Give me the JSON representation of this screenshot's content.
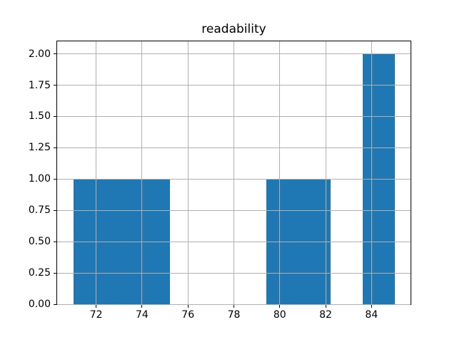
{
  "chart_data": {
    "type": "histogram",
    "title": "readability",
    "xlabel": "",
    "ylabel": "",
    "bin_edges": [
      71.0,
      72.4,
      73.8,
      75.2,
      76.6,
      78.0,
      79.4,
      80.8,
      82.2,
      83.6,
      85.0
    ],
    "counts": [
      1,
      1,
      1,
      0,
      0,
      0,
      1,
      1,
      0,
      2
    ],
    "xlim": [
      70.3,
      85.7
    ],
    "ylim": [
      0,
      2.1
    ],
    "xticks": [
      72,
      74,
      76,
      78,
      80,
      82,
      84
    ],
    "xtick_labels": [
      "72",
      "74",
      "76",
      "78",
      "80",
      "82",
      "84"
    ],
    "yticks": [
      0.0,
      0.25,
      0.5,
      0.75,
      1.0,
      1.25,
      1.5,
      1.75,
      2.0
    ],
    "ytick_labels": [
      "0.00",
      "0.25",
      "0.50",
      "0.75",
      "1.00",
      "1.25",
      "1.50",
      "1.75",
      "2.00"
    ],
    "grid": true,
    "grid_on_top_of_bars": true,
    "legend": false,
    "colors": {
      "bar": "#1f77b4",
      "grid": "#b0b0b0",
      "spine": "#000000",
      "background": "#ffffff",
      "text": "#000000"
    }
  }
}
